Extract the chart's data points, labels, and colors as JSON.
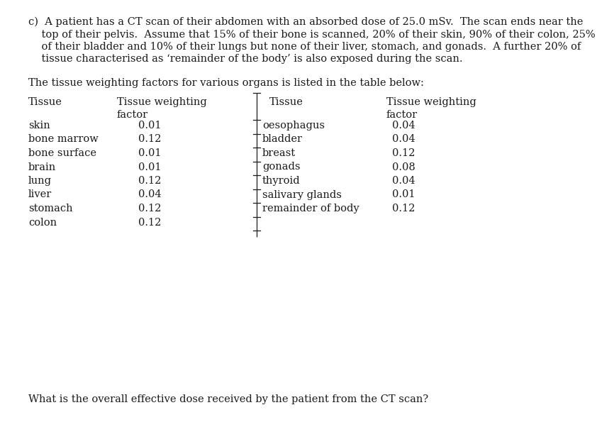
{
  "bg_color": "#ffffff",
  "text_color": "#1a1a1a",
  "intro_lines": [
    "c)  A patient has a CT scan of their abdomen with an absorbed dose of 25.0 mSv.  The scan ends near the",
    "    top of their pelvis.  Assume that 15% of their bone is scanned, 20% of their skin, 90% of their colon, 25%",
    "    of their bladder and 10% of their lungs but none of their liver, stomach, and gonads.  A further 20% of",
    "    tissue characterised as ‘remainder of the body’ is also exposed during the scan."
  ],
  "table_intro": "The tissue weighting factors for various organs is listed in the table below:",
  "left_rows": [
    [
      "skin",
      "0.01"
    ],
    [
      "bone marrow",
      "0.12"
    ],
    [
      "bone surface",
      "0.01"
    ],
    [
      "brain",
      "0.01"
    ],
    [
      "lung",
      "0.12"
    ],
    [
      "liver",
      "0.04"
    ],
    [
      "stomach",
      "0.12"
    ],
    [
      "colon",
      "0.12"
    ]
  ],
  "right_rows": [
    [
      "oesophagus",
      "0.04"
    ],
    [
      "bladder",
      "0.04"
    ],
    [
      "breast",
      "0.12"
    ],
    [
      "gonads",
      "0.08"
    ],
    [
      "thyroid",
      "0.04"
    ],
    [
      "salivary glands",
      "0.01"
    ],
    [
      "remainder of body",
      "0.12"
    ]
  ],
  "footer_text": "What is the overall effective dose received by the patient from the CT scan?",
  "font_size": 10.5,
  "header_font_size": 10.5
}
